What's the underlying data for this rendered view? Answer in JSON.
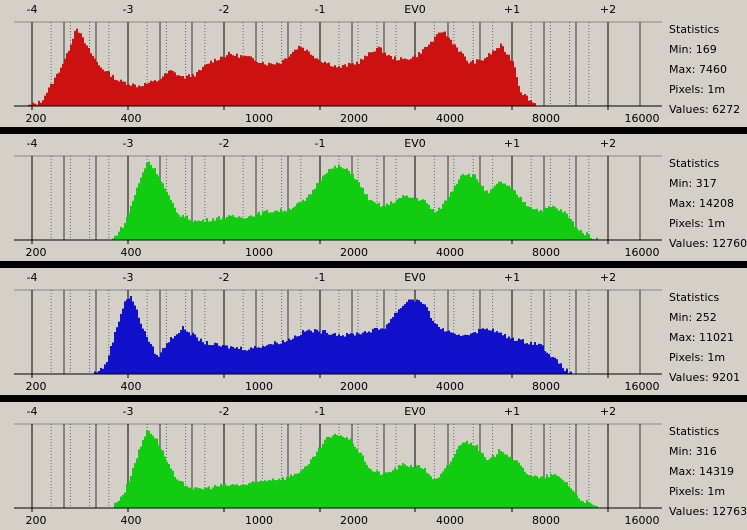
{
  "ev_labels": [
    "-4",
    "-3",
    "-2",
    "-1",
    "EV0",
    "+1",
    "+2"
  ],
  "value_labels": [
    "200",
    "400",
    "1000",
    "2000",
    "4000",
    "8000",
    "16000"
  ],
  "stats_title": "Statistics",
  "channels": [
    {
      "id": "red",
      "color": "#cc1111",
      "min_label": "Min: 169",
      "max_label": "Max: 7460",
      "pixels_label": "Pixels: 1m",
      "values_label": "Values: 6272",
      "profile": [
        [
          0.02,
          0
        ],
        [
          0.04,
          0.05
        ],
        [
          0.06,
          0.3
        ],
        [
          0.08,
          0.6
        ],
        [
          0.095,
          0.95
        ],
        [
          0.11,
          0.72
        ],
        [
          0.13,
          0.48
        ],
        [
          0.16,
          0.3
        ],
        [
          0.19,
          0.24
        ],
        [
          0.22,
          0.3
        ],
        [
          0.24,
          0.42
        ],
        [
          0.26,
          0.34
        ],
        [
          0.28,
          0.38
        ],
        [
          0.3,
          0.52
        ],
        [
          0.33,
          0.62
        ],
        [
          0.36,
          0.58
        ],
        [
          0.39,
          0.5
        ],
        [
          0.41,
          0.52
        ],
        [
          0.44,
          0.72
        ],
        [
          0.47,
          0.55
        ],
        [
          0.5,
          0.46
        ],
        [
          0.53,
          0.52
        ],
        [
          0.56,
          0.7
        ],
        [
          0.58,
          0.58
        ],
        [
          0.6,
          0.55
        ],
        [
          0.62,
          0.6
        ],
        [
          0.64,
          0.74
        ],
        [
          0.66,
          0.9
        ],
        [
          0.68,
          0.72
        ],
        [
          0.7,
          0.52
        ],
        [
          0.72,
          0.54
        ],
        [
          0.74,
          0.66
        ],
        [
          0.75,
          0.72
        ],
        [
          0.77,
          0.52
        ],
        [
          0.78,
          0.18
        ],
        [
          0.8,
          0.04
        ],
        [
          0.81,
          0
        ]
      ]
    },
    {
      "id": "green1",
      "color": "#11cc11",
      "min_label": "Min: 317",
      "max_label": "Max: 14208",
      "pixels_label": "Pixels: 1m",
      "values_label": "Values: 12760",
      "profile": [
        [
          0.15,
          0
        ],
        [
          0.17,
          0.2
        ],
        [
          0.19,
          0.65
        ],
        [
          0.205,
          0.95
        ],
        [
          0.22,
          0.8
        ],
        [
          0.25,
          0.32
        ],
        [
          0.28,
          0.22
        ],
        [
          0.32,
          0.27
        ],
        [
          0.36,
          0.28
        ],
        [
          0.39,
          0.34
        ],
        [
          0.42,
          0.36
        ],
        [
          0.45,
          0.48
        ],
        [
          0.48,
          0.82
        ],
        [
          0.5,
          0.88
        ],
        [
          0.52,
          0.8
        ],
        [
          0.55,
          0.45
        ],
        [
          0.57,
          0.4
        ],
        [
          0.6,
          0.52
        ],
        [
          0.63,
          0.48
        ],
        [
          0.65,
          0.32
        ],
        [
          0.67,
          0.52
        ],
        [
          0.69,
          0.8
        ],
        [
          0.71,
          0.76
        ],
        [
          0.73,
          0.55
        ],
        [
          0.75,
          0.7
        ],
        [
          0.77,
          0.58
        ],
        [
          0.79,
          0.42
        ],
        [
          0.81,
          0.35
        ],
        [
          0.83,
          0.4
        ],
        [
          0.85,
          0.32
        ],
        [
          0.87,
          0.12
        ],
        [
          0.89,
          0.04
        ],
        [
          0.9,
          0
        ]
      ]
    },
    {
      "id": "blue",
      "color": "#1111cc",
      "min_label": "Min: 252",
      "max_label": "Max: 11021",
      "pixels_label": "Pixels: 1m",
      "values_label": "Values: 9201",
      "profile": [
        [
          0.12,
          0
        ],
        [
          0.14,
          0.1
        ],
        [
          0.155,
          0.5
        ],
        [
          0.17,
          0.88
        ],
        [
          0.18,
          0.92
        ],
        [
          0.2,
          0.5
        ],
        [
          0.22,
          0.2
        ],
        [
          0.24,
          0.42
        ],
        [
          0.26,
          0.55
        ],
        [
          0.29,
          0.38
        ],
        [
          0.32,
          0.33
        ],
        [
          0.36,
          0.3
        ],
        [
          0.39,
          0.35
        ],
        [
          0.42,
          0.4
        ],
        [
          0.45,
          0.52
        ],
        [
          0.48,
          0.5
        ],
        [
          0.51,
          0.46
        ],
        [
          0.54,
          0.5
        ],
        [
          0.57,
          0.55
        ],
        [
          0.59,
          0.75
        ],
        [
          0.61,
          0.9
        ],
        [
          0.63,
          0.85
        ],
        [
          0.65,
          0.58
        ],
        [
          0.68,
          0.45
        ],
        [
          0.7,
          0.48
        ],
        [
          0.73,
          0.55
        ],
        [
          0.76,
          0.44
        ],
        [
          0.79,
          0.38
        ],
        [
          0.81,
          0.36
        ],
        [
          0.83,
          0.2
        ],
        [
          0.85,
          0.05
        ],
        [
          0.86,
          0
        ]
      ]
    },
    {
      "id": "green2",
      "color": "#11cc11",
      "min_label": "Min: 316",
      "max_label": "Max: 14319",
      "pixels_label": "Pixels: 1m",
      "values_label": "Values: 12763",
      "profile": [
        [
          0.15,
          0
        ],
        [
          0.17,
          0.2
        ],
        [
          0.19,
          0.65
        ],
        [
          0.205,
          0.95
        ],
        [
          0.22,
          0.8
        ],
        [
          0.25,
          0.32
        ],
        [
          0.28,
          0.22
        ],
        [
          0.32,
          0.27
        ],
        [
          0.36,
          0.28
        ],
        [
          0.39,
          0.34
        ],
        [
          0.42,
          0.36
        ],
        [
          0.45,
          0.48
        ],
        [
          0.48,
          0.82
        ],
        [
          0.5,
          0.88
        ],
        [
          0.52,
          0.8
        ],
        [
          0.55,
          0.45
        ],
        [
          0.57,
          0.4
        ],
        [
          0.6,
          0.52
        ],
        [
          0.63,
          0.48
        ],
        [
          0.65,
          0.32
        ],
        [
          0.67,
          0.52
        ],
        [
          0.69,
          0.8
        ],
        [
          0.71,
          0.76
        ],
        [
          0.73,
          0.55
        ],
        [
          0.75,
          0.7
        ],
        [
          0.77,
          0.58
        ],
        [
          0.79,
          0.42
        ],
        [
          0.81,
          0.35
        ],
        [
          0.83,
          0.4
        ],
        [
          0.85,
          0.32
        ],
        [
          0.87,
          0.12
        ],
        [
          0.89,
          0.04
        ],
        [
          0.9,
          0
        ]
      ]
    }
  ]
}
